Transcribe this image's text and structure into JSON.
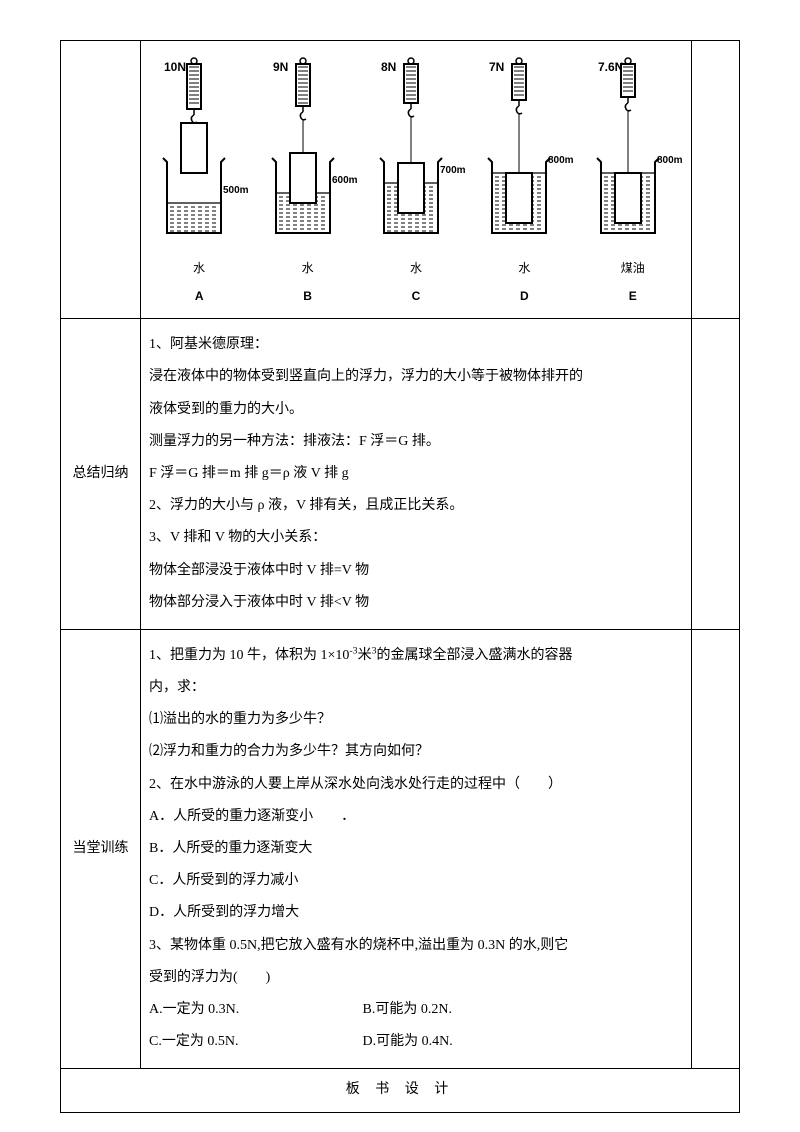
{
  "diagram": {
    "setups": [
      {
        "id": "A",
        "force": "10N",
        "liquid": "水",
        "vol": "500ml",
        "depth": 0,
        "clr": "#000",
        "fill": "#fff",
        "volY": 140,
        "waterTop": 150,
        "blockTop": 70,
        "blockBot": 120
      },
      {
        "id": "B",
        "force": "9N",
        "liquid": "水",
        "vol": "600ml",
        "depth": 1,
        "clr": "#000",
        "fill": "#fff",
        "volY": 130,
        "waterTop": 140,
        "blockTop": 100,
        "blockBot": 150
      },
      {
        "id": "C",
        "force": "8N",
        "liquid": "水",
        "vol": "700ml",
        "depth": 2,
        "clr": "#000",
        "fill": "#fff",
        "volY": 120,
        "waterTop": 130,
        "blockTop": 110,
        "blockBot": 160
      },
      {
        "id": "D",
        "force": "7N",
        "liquid": "水",
        "vol": "800ml",
        "depth": 3,
        "clr": "#000",
        "fill": "#fff",
        "volY": 110,
        "waterTop": 120,
        "blockTop": 120,
        "blockBot": 170
      },
      {
        "id": "E",
        "force": "7.6N",
        "liquid": "煤油",
        "vol": "800m",
        "depth": 3,
        "clr": "#000",
        "fill": "#fff",
        "volY": 110,
        "waterTop": 120,
        "blockTop": 120,
        "blockBot": 170
      }
    ]
  },
  "row1": {
    "label": "总结归纳",
    "lines": [
      "1、阿基米德原理：",
      "浸在液体中的物体受到竖直向上的浮力，浮力的大小等于被物体排开的",
      "液体受到的重力的大小。",
      "测量浮力的另一种方法：排液法：F 浮＝G 排。",
      "F 浮＝G 排＝m 排 g＝ρ 液 V 排 g",
      "2、浮力的大小与 ρ 液，V 排有关，且成正比关系。",
      "3、V 排和 V 物的大小关系：",
      "物体全部浸没于液体中时 V 排=V 物",
      "物体部分浸入于液体中时 V 排<V 物"
    ]
  },
  "row2": {
    "label": "当堂训练",
    "q1_lead": "1、把重力为 10 牛，体积为 1×10",
    "q1_sup": "-3",
    "q1_mid": "米",
    "q1_sup2": "3",
    "q1_tail": "的金属球全部浸入盛满水的容器",
    "q1_line2": "内，求：",
    "q1_a": "⑴溢出的水的重力为多少牛？",
    "q1_b": "⑵浮力和重力的合力为多少牛？其方向如何？",
    "q2": "2、在水中游泳的人要上岸从深水处向浅水处行走的过程中（　　）",
    "q2A": "A．人所受的重力逐渐变小　　．",
    "q2B": "B．人所受的重力逐渐变大",
    "q2C": "C．人所受到的浮力减小",
    "q2D": "D．人所受到的浮力增大",
    "q3a": "3、某物体重 0.5N,把它放入盛有水的烧杯中,溢出重为 0.3N 的水,则它",
    "q3b": "受到的浮力为(　　)",
    "q3A": "A.一定为 0.3N.",
    "q3B": "B.可能为 0.2N.",
    "q3C": "C.一定为 0.5N.",
    "q3D": "D.可能为 0.4N."
  },
  "footer": "板 书 设 计"
}
